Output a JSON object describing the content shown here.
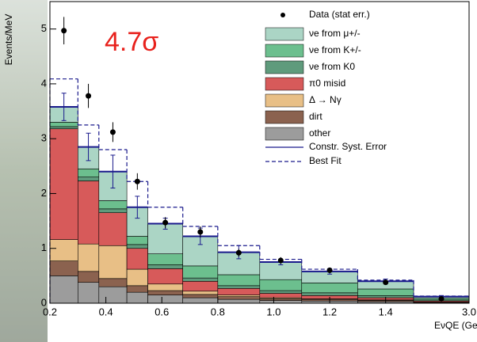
{
  "chart_data": {
    "type": "stacked-histogram",
    "annotation": "4.7σ",
    "ylabel": "Events/MeV",
    "xlabel": "EνQE (GeV)",
    "bins": [
      0.2,
      0.3,
      0.375,
      0.475,
      0.55,
      0.675,
      0.8,
      0.95,
      1.1,
      1.3,
      1.5,
      3.0
    ],
    "xlim": [
      0.2,
      3.0
    ],
    "xticks": [
      0.2,
      0.4,
      0.6,
      0.8,
      {
        "value": 1,
        "label": "1.0"
      },
      1.2,
      1.4,
      {
        "value": 3,
        "label": "3.0"
      }
    ],
    "ylim": [
      0,
      5.5
    ],
    "yticks": [
      0,
      1,
      2,
      3,
      4,
      5
    ],
    "series": [
      {
        "name": "other",
        "color": "#9c9c9c",
        "values": [
          0.5,
          0.38,
          0.3,
          0.2,
          0.15,
          0.1,
          0.07,
          0.05,
          0.04,
          0.03,
          0.01
        ]
      },
      {
        "name": "dirt",
        "color": "#8b624f",
        "values": [
          0.27,
          0.2,
          0.15,
          0.12,
          0.08,
          0.06,
          0.05,
          0.03,
          0.03,
          0.02,
          0.01
        ]
      },
      {
        "name": "Δ → Nγ",
        "color": "#e8bf86",
        "values": [
          0.39,
          0.5,
          0.6,
          0.3,
          0.12,
          0.06,
          0.03,
          0.02,
          0.01,
          0.01,
          0.0
        ]
      },
      {
        "name": "π0 misid",
        "color": "#d75a5a",
        "values": [
          2.02,
          1.15,
          0.6,
          0.38,
          0.28,
          0.18,
          0.12,
          0.08,
          0.06,
          0.04,
          0.02
        ]
      },
      {
        "name": "νe from K0",
        "color": "#5f9b7c",
        "values": [
          0.04,
          0.07,
          0.07,
          0.07,
          0.07,
          0.06,
          0.05,
          0.05,
          0.05,
          0.04,
          0.02
        ]
      },
      {
        "name": "νe from K+/-",
        "color": "#6cbf8e",
        "values": [
          0.08,
          0.15,
          0.15,
          0.15,
          0.2,
          0.22,
          0.2,
          0.2,
          0.18,
          0.12,
          0.03
        ]
      },
      {
        "name": "νe from μ+/-",
        "color": "#abd5c5",
        "values": [
          0.28,
          0.4,
          0.53,
          0.53,
          0.55,
          0.54,
          0.41,
          0.32,
          0.21,
          0.14,
          0.03
        ]
      }
    ],
    "syst": {
      "name": "Constr. Syst. Error",
      "color": "#1a1a8c",
      "values": [
        0.25,
        0.25,
        0.3,
        0.2,
        0.1,
        0.15,
        0.12,
        0.05,
        0.05,
        0.04,
        0.02
      ]
    },
    "best_fit": {
      "name": "Best Fit",
      "color": "#1a1a8c",
      "values": [
        4.09,
        3.25,
        2.8,
        2.22,
        1.75,
        1.4,
        1.05,
        0.8,
        0.62,
        0.42,
        0.13
      ]
    },
    "data": {
      "name": "Data (stat err.)",
      "color": "#000000",
      "x": [
        0.25,
        0.3375,
        0.425,
        0.5125,
        0.6125,
        0.7375,
        0.875,
        1.025,
        1.2,
        1.4,
        2.25
      ],
      "values": [
        4.97,
        3.78,
        3.12,
        2.22,
        1.47,
        1.3,
        0.92,
        0.78,
        0.6,
        0.38,
        0.08
      ],
      "errors": [
        0.25,
        0.22,
        0.18,
        0.15,
        0.1,
        0.1,
        0.07,
        0.06,
        0.05,
        0.04,
        0.02
      ]
    }
  }
}
